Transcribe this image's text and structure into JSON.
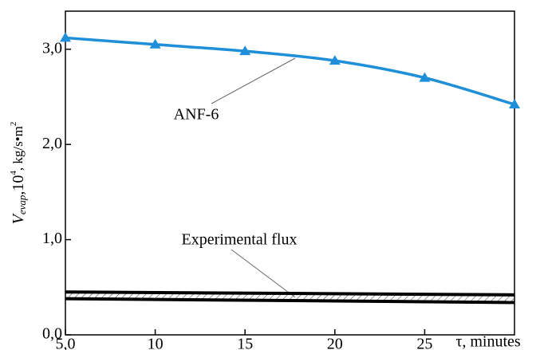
{
  "chart_data": {
    "type": "line",
    "ylabel": [
      "V",
      "evap",
      ",10",
      "4",
      ", kg/s•m",
      "2"
    ],
    "xlabel": "τ, minutes",
    "xlim": [
      5,
      30
    ],
    "ylim": [
      0,
      3.4
    ],
    "xticks": [
      {
        "value": 5,
        "label": "5,0"
      },
      10,
      15,
      20,
      25
    ],
    "yticks": [
      {
        "value": 0,
        "label": "0,0"
      },
      {
        "value": 1,
        "label": "1,0"
      },
      {
        "value": 2,
        "label": "2,0"
      },
      {
        "value": 3,
        "label": "3,0"
      }
    ],
    "series": [
      {
        "name": "ANF-6",
        "color": "#1e8fd8",
        "x": [
          5,
          10,
          15,
          20,
          25,
          30
        ],
        "values": [
          3.12,
          3.05,
          2.98,
          2.88,
          2.7,
          2.42
        ]
      },
      {
        "name": "Experimental flux",
        "color": "#000000",
        "x": [
          5,
          30
        ],
        "upper": [
          0.45,
          0.42
        ],
        "lower": [
          0.38,
          0.34
        ]
      }
    ]
  }
}
